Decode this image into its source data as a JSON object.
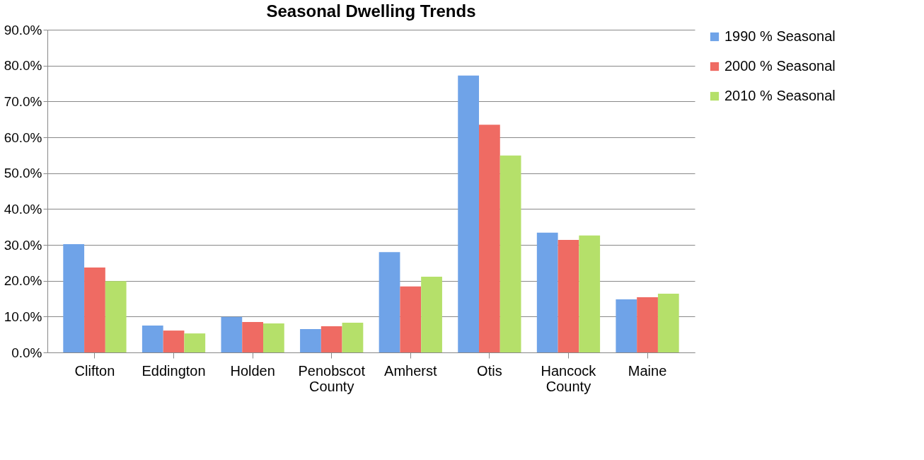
{
  "chart_data": {
    "type": "bar",
    "title": "Seasonal Dwelling Trends",
    "categories": [
      "Clifton",
      "Eddington",
      "Holden",
      "Penobscot County",
      "Amherst",
      "Otis",
      "Hancock County",
      "Maine"
    ],
    "series": [
      {
        "name": "1990 % Seasonal",
        "color": "#6fa3e8",
        "values": [
          30.2,
          7.5,
          9.9,
          6.5,
          28.0,
          77.2,
          33.4,
          14.8
        ]
      },
      {
        "name": "2000 % Seasonal",
        "color": "#ef6b63",
        "values": [
          23.7,
          6.1,
          8.5,
          7.3,
          18.4,
          63.5,
          31.4,
          15.4
        ]
      },
      {
        "name": "2010 % Seasonal",
        "color": "#b5e06a",
        "values": [
          19.9,
          5.3,
          8.1,
          8.3,
          21.1,
          54.9,
          32.6,
          16.4
        ]
      }
    ],
    "ylim": [
      0,
      90
    ],
    "yticks": [
      {
        "value": 0,
        "label": "0.0%"
      },
      {
        "value": 10,
        "label": "10.0%"
      },
      {
        "value": 20,
        "label": "20.0%"
      },
      {
        "value": 30,
        "label": "30.0%"
      },
      {
        "value": 40,
        "label": "40.0%"
      },
      {
        "value": 50,
        "label": "50.0%"
      },
      {
        "value": 60,
        "label": "60.0%"
      },
      {
        "value": 70,
        "label": "70.0%"
      },
      {
        "value": 80,
        "label": "80.0%"
      },
      {
        "value": 90,
        "label": "90.0%"
      }
    ],
    "grid": "y",
    "legend": "right"
  }
}
